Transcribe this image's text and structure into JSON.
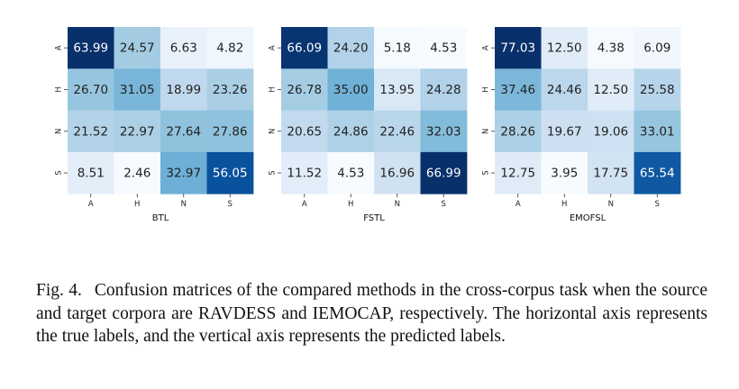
{
  "chart_data": [
    {
      "type": "heatmap",
      "title": "",
      "xlabel": "BTL",
      "ylabel": "",
      "x_categories": [
        "A",
        "H",
        "N",
        "S"
      ],
      "y_categories": [
        "A",
        "H",
        "N",
        "S"
      ],
      "values": [
        [
          63.99,
          24.57,
          6.63,
          4.82
        ],
        [
          26.7,
          31.05,
          18.99,
          23.26
        ],
        [
          21.52,
          22.97,
          27.64,
          27.86
        ],
        [
          8.51,
          2.46,
          32.97,
          56.05
        ]
      ],
      "colormap": "Blues",
      "colorbar": false
    },
    {
      "type": "heatmap",
      "title": "",
      "xlabel": "FSTL",
      "ylabel": "",
      "x_categories": [
        "A",
        "H",
        "N",
        "S"
      ],
      "y_categories": [
        "A",
        "H",
        "N",
        "S"
      ],
      "values": [
        [
          66.09,
          24.2,
          5.18,
          4.53
        ],
        [
          26.78,
          35.0,
          13.95,
          24.28
        ],
        [
          20.65,
          24.86,
          22.46,
          32.03
        ],
        [
          11.52,
          4.53,
          16.96,
          66.99
        ]
      ],
      "colormap": "Blues",
      "colorbar": false
    },
    {
      "type": "heatmap",
      "title": "",
      "xlabel": "EMOFSL",
      "ylabel": "",
      "x_categories": [
        "A",
        "H",
        "N",
        "S"
      ],
      "y_categories": [
        "A",
        "H",
        "N",
        "S"
      ],
      "values": [
        [
          77.03,
          12.5,
          4.38,
          6.09
        ],
        [
          37.46,
          24.46,
          12.5,
          25.58
        ],
        [
          28.26,
          19.67,
          19.06,
          33.01
        ],
        [
          12.75,
          3.95,
          17.75,
          65.54
        ]
      ],
      "colormap": "Blues",
      "colorbar": false
    }
  ],
  "caption": {
    "label": "Fig. 4.",
    "text": "Confusion matrices of the compared methods in the cross-corpus task when the source and target corpora are RAVDESS and IEMOCAP, respectively. The horizontal axis represents the true labels, and the vertical axis represents the predicted labels."
  }
}
